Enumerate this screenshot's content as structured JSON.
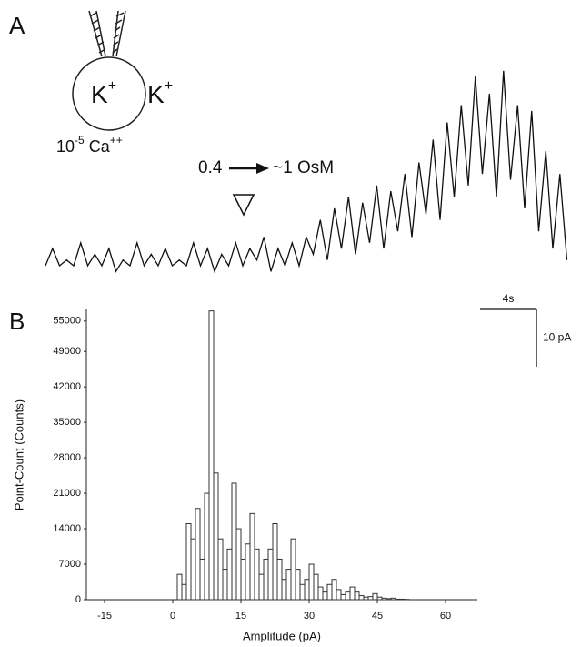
{
  "chart_data": [
    {
      "type": "line",
      "panel_label": "A",
      "pipette_ion": {
        "base": "K",
        "sup": "+"
      },
      "bath_ion": {
        "base": "K",
        "sup": "+"
      },
      "calcium": [
        {
          "base": "10",
          "sup": "-5"
        },
        {
          "base": "Ca",
          "sup": "++"
        }
      ],
      "stimulus": {
        "from": "0.4",
        "to": "~1 OsM"
      },
      "scalebar": {
        "x": 4,
        "x_label": "4s",
        "y": 10,
        "y_label": "10 pA"
      },
      "color": "#111111",
      "x": [
        0,
        0.5,
        1,
        1.5,
        2,
        2.5,
        3,
        3.5,
        4,
        4.5,
        5,
        5.5,
        6,
        6.5,
        7,
        7.5,
        8,
        8.5,
        9,
        9.5,
        10,
        10.5,
        11,
        11.5,
        12,
        12.5,
        13,
        13.5,
        14,
        14.5,
        15,
        15.5,
        16,
        16.5,
        17,
        17.5,
        18,
        18.5,
        19,
        19.5,
        20,
        20.5,
        21,
        21.5,
        22,
        22.5,
        23,
        23.5,
        24,
        24.5,
        25,
        25.5,
        26,
        26.5,
        27,
        27.5,
        28,
        28.5,
        29,
        29.5,
        30,
        30.5,
        31,
        31.5,
        32,
        32.5,
        33,
        33.5,
        34,
        34.5,
        35,
        35.5,
        36,
        36.5,
        37
      ],
      "values": [
        0,
        3,
        0,
        1,
        0,
        4,
        0,
        2,
        0,
        3,
        -1,
        1,
        0,
        4,
        0,
        2,
        0,
        3,
        0,
        1,
        0,
        4,
        0,
        3,
        -1,
        2,
        0,
        4,
        0,
        3,
        1,
        5,
        -1,
        3,
        0,
        4,
        0,
        5,
        2,
        8,
        1,
        10,
        3,
        12,
        2,
        11,
        4,
        14,
        3,
        13,
        6,
        16,
        5,
        18,
        9,
        22,
        8,
        25,
        12,
        28,
        14,
        33,
        16,
        30,
        12,
        34,
        15,
        28,
        10,
        27,
        6,
        20,
        3,
        16,
        1
      ]
    },
    {
      "type": "histogram",
      "panel_label": "B",
      "x_label": "Amplitude (pA)",
      "y_label": "Point-Count (Counts)",
      "color": "#333333",
      "xlim": [
        -19,
        67
      ],
      "xticks": [
        -15,
        0,
        15,
        30,
        45,
        60
      ],
      "ylim": [
        0,
        57300
      ],
      "yticks": [
        0,
        7000,
        14000,
        21000,
        28000,
        35000,
        42000,
        49000,
        55000
      ],
      "bins": [
        0,
        1,
        2,
        3,
        4,
        5,
        6,
        7,
        8,
        9,
        10,
        11,
        12,
        13,
        14,
        15,
        16,
        17,
        18,
        19,
        20,
        21,
        22,
        23,
        24,
        25,
        26,
        27,
        28,
        29,
        30,
        31,
        32,
        33,
        34,
        35,
        36,
        37,
        38,
        39,
        40,
        41,
        42,
        43,
        44,
        45,
        46,
        47,
        48,
        49,
        50,
        51,
        52
      ],
      "values": [
        0,
        5000,
        3000,
        15000,
        12000,
        18000,
        8000,
        21000,
        57000,
        25000,
        12000,
        6000,
        10000,
        23000,
        14000,
        8000,
        11000,
        17000,
        10000,
        5000,
        8000,
        10000,
        15000,
        8000,
        4000,
        6000,
        12000,
        6000,
        3000,
        4000,
        7000,
        5000,
        2500,
        1500,
        3000,
        4000,
        2000,
        1000,
        1500,
        2500,
        1500,
        800,
        500,
        600,
        1200,
        500,
        300,
        200,
        300,
        100,
        100,
        50
      ]
    }
  ]
}
